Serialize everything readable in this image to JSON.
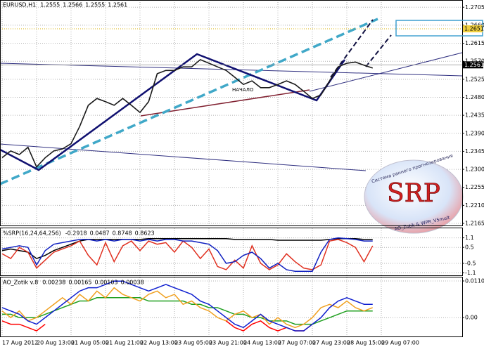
{
  "chart_data": [
    {
      "type": "line",
      "title": "EURUSD,H1",
      "ohlc": [
        1.2555,
        1.2566,
        1.2555,
        1.2561
      ],
      "categories": [
        "17 Aug 2012",
        null,
        null,
        null,
        "20 Aug 13:00",
        null,
        null,
        null,
        "21 Aug 05:00",
        null,
        null,
        null,
        "21 Aug 21:00",
        null,
        null,
        null,
        "22 Aug 13:00",
        null,
        null,
        null,
        "23 Aug 05:00",
        null,
        null,
        null,
        "23 Aug 21:00",
        null,
        null,
        null,
        "24 Aug 13:00",
        null,
        null,
        null,
        "27 Aug 07:00",
        null,
        null,
        null,
        "27 Aug 23:00",
        null,
        null,
        null,
        "28 Aug 15:00",
        null,
        null,
        null,
        "29 Aug 07:00"
      ],
      "series": [
        {
          "color": "#1a1a1a",
          "values": [
            1.2329,
            1.2346,
            1.2337,
            1.2355,
            1.2306,
            1.2329,
            1.2346,
            1.2351,
            1.2364,
            1.2407,
            1.246,
            1.2477,
            1.2469,
            1.246,
            1.2477,
            1.246,
            1.2442,
            1.2469,
            1.2539,
            1.2547,
            1.2547,
            1.2556,
            1.2556,
            1.2574,
            1.2565,
            1.2556,
            1.2547,
            1.253,
            1.2512,
            1.2521,
            1.2504,
            1.2504,
            1.2512,
            1.2521,
            1.2512,
            1.2495,
            1.2477,
            1.2486,
            1.2521,
            1.2556,
            1.2565,
            1.2568,
            1.256,
            1.2553,
            null
          ]
        }
      ],
      "last_price": 1.2561,
      "level": 1.2651,
      "annotation": "НАЧАЛО",
      "ylim": [
        1.2158,
        1.2723
      ],
      "yticks": [
        {
          "value": 1.2705,
          "label": "1.2705"
        },
        {
          "value": 1.266,
          "label": "1.2660"
        },
        {
          "value": 1.2615,
          "label": "1.2615"
        },
        {
          "value": 1.257,
          "label": "1.2570"
        },
        {
          "value": 1.2525,
          "label": "1.2525"
        },
        {
          "value": 1.248,
          "label": "1.2480"
        },
        {
          "value": 1.2435,
          "label": "1.2435"
        },
        {
          "value": 1.239,
          "label": "1.2390"
        },
        {
          "value": 1.2345,
          "label": "1.2345"
        },
        {
          "value": 1.23,
          "label": "1.2300"
        },
        {
          "value": 1.2255,
          "label": "1.2255"
        },
        {
          "value": 1.221,
          "label": "1.2210"
        },
        {
          "value": 1.2165,
          "label": "1.2165"
        }
      ],
      "grid": true
    },
    {
      "type": "line",
      "title": "%SRP(16,24,64,256)",
      "readings": [
        -0.2918,
        0.0487,
        0.8748,
        0.8623
      ],
      "series": [
        {
          "color": "#000000",
          "values": [
            0.3,
            0.4,
            0.3,
            0.2,
            -0.2,
            0.0,
            0.3,
            0.5,
            0.7,
            0.9,
            1.0,
            1.0,
            1.0,
            1.0,
            1.0,
            1.0,
            1.0,
            1.05,
            1.05,
            1.05,
            1.05,
            1.05,
            1.05,
            1.05,
            1.05,
            1.05,
            1.05,
            1.0,
            1.0,
            1.0,
            1.0,
            1.0,
            0.95,
            0.95,
            0.95,
            0.95,
            0.95,
            0.95,
            1.0,
            1.05,
            1.05,
            1.05,
            1.0,
            1.0,
            null
          ]
        },
        {
          "color": "#e03020",
          "values": [
            0.1,
            -0.2,
            0.5,
            0.2,
            -0.8,
            -0.3,
            0.2,
            0.4,
            0.6,
            0.9,
            0.0,
            -0.6,
            0.8,
            -0.4,
            0.6,
            0.9,
            0.3,
            0.9,
            0.7,
            0.8,
            0.2,
            0.9,
            0.5,
            -0.2,
            0.4,
            -0.7,
            -0.9,
            -0.3,
            -0.8,
            0.6,
            -0.5,
            -0.9,
            -0.6,
            0.1,
            -0.4,
            -0.8,
            -0.9,
            -0.6,
            0.9,
            1.0,
            0.8,
            0.5,
            -0.4,
            0.6,
            null
          ]
        },
        {
          "color": "#1020c0",
          "values": [
            0.4,
            0.5,
            0.6,
            0.5,
            -0.6,
            0.3,
            0.7,
            0.8,
            0.9,
            1.0,
            1.0,
            0.9,
            1.0,
            0.9,
            1.0,
            1.0,
            0.9,
            1.0,
            0.9,
            1.0,
            1.0,
            0.9,
            0.9,
            0.8,
            0.7,
            0.3,
            -0.5,
            -0.4,
            0.0,
            0.2,
            -0.2,
            -0.8,
            -0.5,
            -0.9,
            -1.0,
            -1.0,
            -1.0,
            0.2,
            1.0,
            1.1,
            1.05,
            1.0,
            0.9,
            0.9,
            null
          ]
        }
      ],
      "ylim": [
        -1.3,
        1.7
      ],
      "yticks": [
        1.1,
        0.5,
        -0.5,
        -1.1
      ],
      "grid": true
    },
    {
      "type": "line",
      "title": "AO_Zotik v.8",
      "readings": [
        0.00238,
        0.00165,
        0.00103,
        0.00038
      ],
      "series": [
        {
          "color": "#20a020",
          "values": [
            0.001,
            0.001,
            0.0,
            0.0,
            0.0,
            0.001,
            0.002,
            0.003,
            0.004,
            0.005,
            0.005,
            0.006,
            0.006,
            0.006,
            0.006,
            0.006,
            0.006,
            0.005,
            0.005,
            0.005,
            0.005,
            0.005,
            0.004,
            0.004,
            0.003,
            0.003,
            0.002,
            0.001,
            0.001,
            0.0,
            0.0,
            -0.001,
            -0.001,
            -0.001,
            -0.002,
            -0.002,
            -0.002,
            -0.001,
            0.0,
            0.001,
            0.002,
            0.002,
            0.002,
            0.002,
            null
          ]
        },
        {
          "color": "#f0a020",
          "values": [
            0.002,
            0.0,
            0.002,
            -0.001,
            0.0,
            0.002,
            0.004,
            0.006,
            0.004,
            0.007,
            0.005,
            0.008,
            0.006,
            0.009,
            0.007,
            0.006,
            0.005,
            0.007,
            0.008,
            0.006,
            0.007,
            0.004,
            0.005,
            0.003,
            0.002,
            0.0,
            -0.001,
            0.001,
            0.002,
            0.0,
            0.001,
            -0.002,
            0.0,
            -0.002,
            -0.003,
            -0.002,
            0.0,
            0.003,
            0.004,
            0.003,
            0.005,
            0.003,
            0.002,
            0.003,
            null
          ]
        },
        {
          "color": "#ff0000",
          "values": [
            -0.001,
            -0.002,
            -0.002,
            -0.003,
            -0.004,
            -0.002,
            null,
            null,
            null,
            null,
            null,
            null,
            null,
            null,
            null,
            null,
            null,
            null,
            null,
            null,
            null,
            null,
            null,
            null,
            null,
            null,
            -0.001,
            -0.003,
            -0.004,
            -0.002,
            -0.001,
            -0.003,
            -0.004,
            -0.003,
            -0.004,
            -0.004,
            -0.002,
            null,
            null,
            null,
            null,
            null,
            null,
            null,
            null
          ]
        },
        {
          "color": "#1020d0",
          "values": [
            0.003,
            0.002,
            0.001,
            -0.001,
            -0.002,
            0.0,
            0.002,
            0.004,
            0.006,
            0.008,
            0.009,
            0.009,
            0.01,
            0.011,
            0.011,
            0.01,
            0.009,
            0.008,
            0.009,
            0.01,
            0.009,
            0.008,
            0.007,
            0.005,
            0.004,
            0.002,
            0.0,
            -0.002,
            -0.003,
            -0.001,
            0.001,
            -0.001,
            -0.002,
            -0.003,
            -0.004,
            -0.004,
            -0.002,
            0.0,
            0.003,
            0.005,
            0.006,
            0.005,
            0.004,
            0.004,
            null
          ]
        }
      ],
      "ylim": [
        -0.0059,
        0.0121
      ],
      "yticks": [
        0.01104,
        {
          "value": 0,
          "label": "0.00"
        }
      ],
      "grid": true
    }
  ],
  "logo": {
    "caption": "Система раннего прогнозирования",
    "name": "SRP",
    "credit": "AO_Zotik & WPR_V5mult"
  }
}
